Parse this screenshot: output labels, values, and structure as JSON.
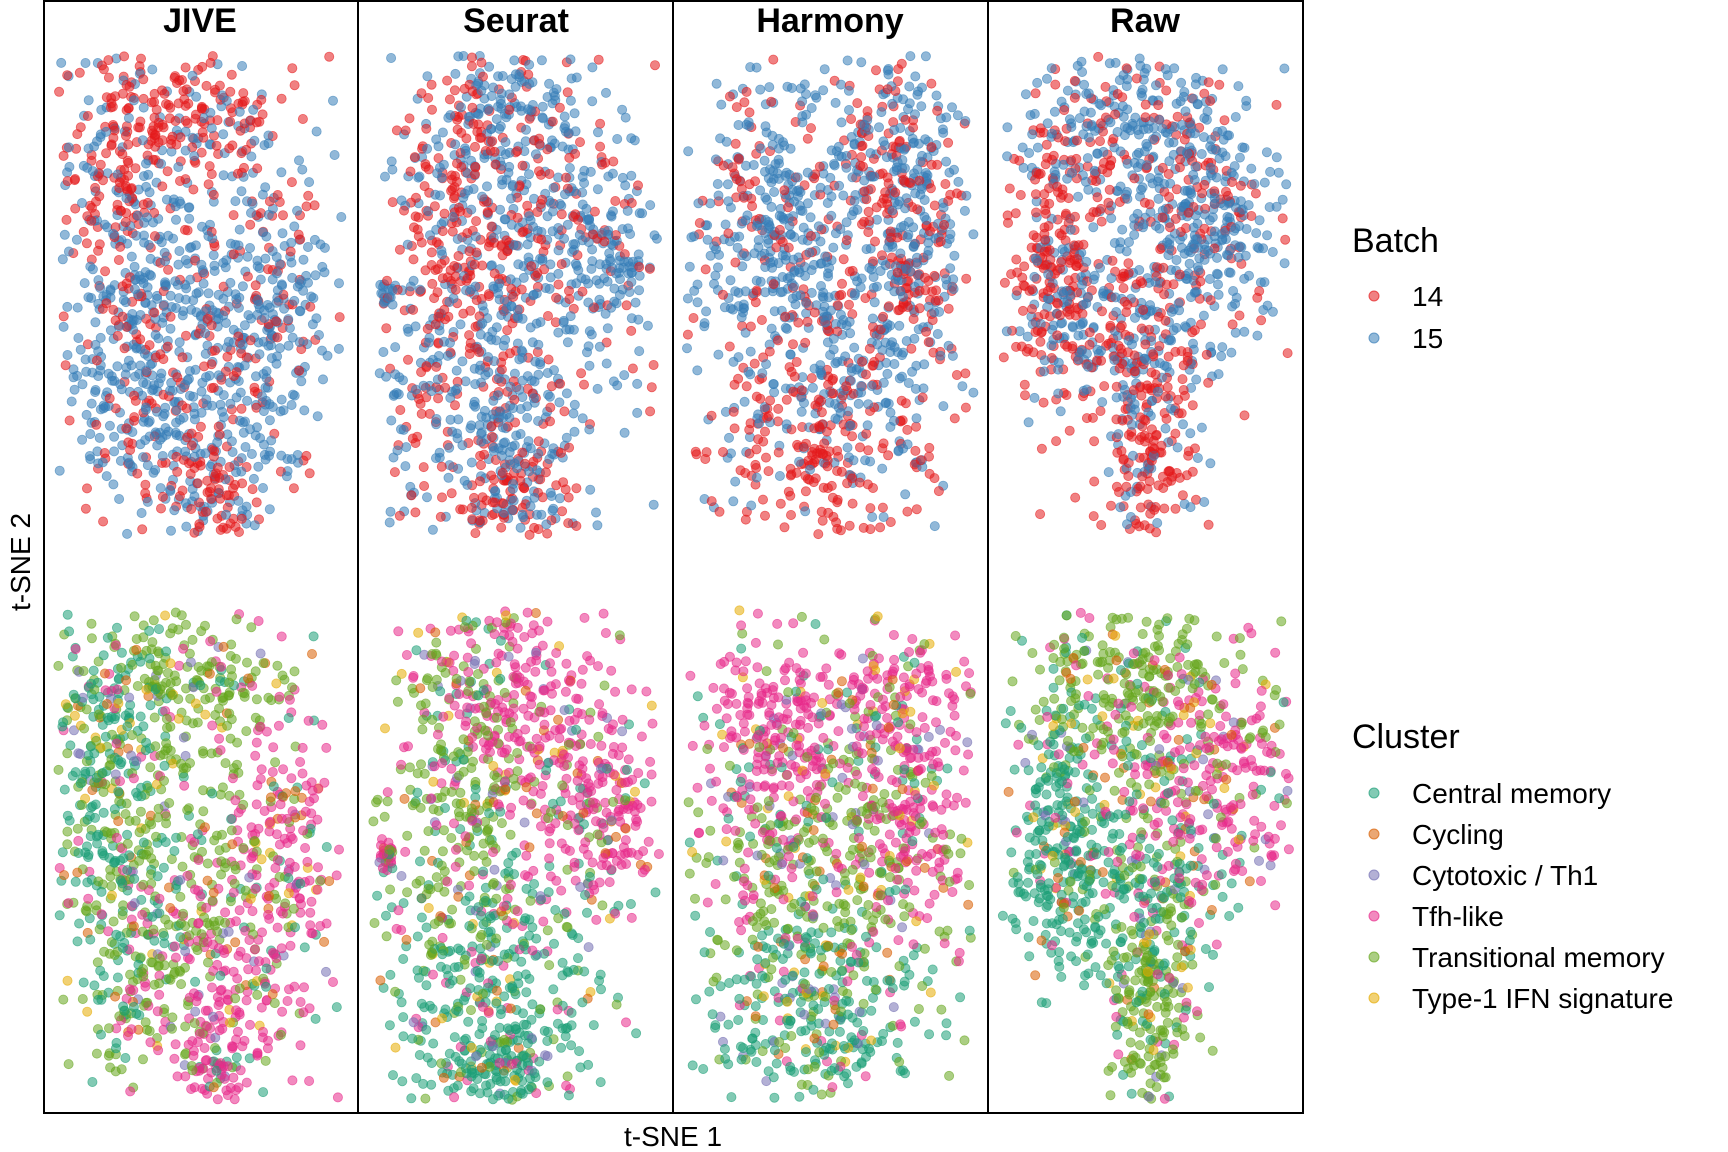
{
  "chart_data": {
    "type": "scatter",
    "panels": [
      "JIVE",
      "Seurat",
      "Harmony",
      "Raw"
    ],
    "xlabel": "t-SNE 1",
    "ylabel": "t-SNE 2",
    "rows": [
      {
        "legend_title": "Batch",
        "series": [
          {
            "name": "14",
            "color": "#E41A1C"
          },
          {
            "name": "15",
            "color": "#377EB8"
          }
        ]
      },
      {
        "legend_title": "Cluster",
        "series": [
          {
            "name": "Central memory",
            "color": "#1B9E77"
          },
          {
            "name": "Cycling",
            "color": "#D95F02"
          },
          {
            "name": "Cytotoxic / Th1",
            "color": "#7570B3"
          },
          {
            "name": "Tfh-like",
            "color": "#E7298A"
          },
          {
            "name": "Transitional memory",
            "color": "#66A61E"
          },
          {
            "name": "Type-1 IFN signature",
            "color": "#E6AB02"
          }
        ]
      }
    ],
    "point_alpha": 0.55,
    "grid": false,
    "legend_position": "right"
  }
}
